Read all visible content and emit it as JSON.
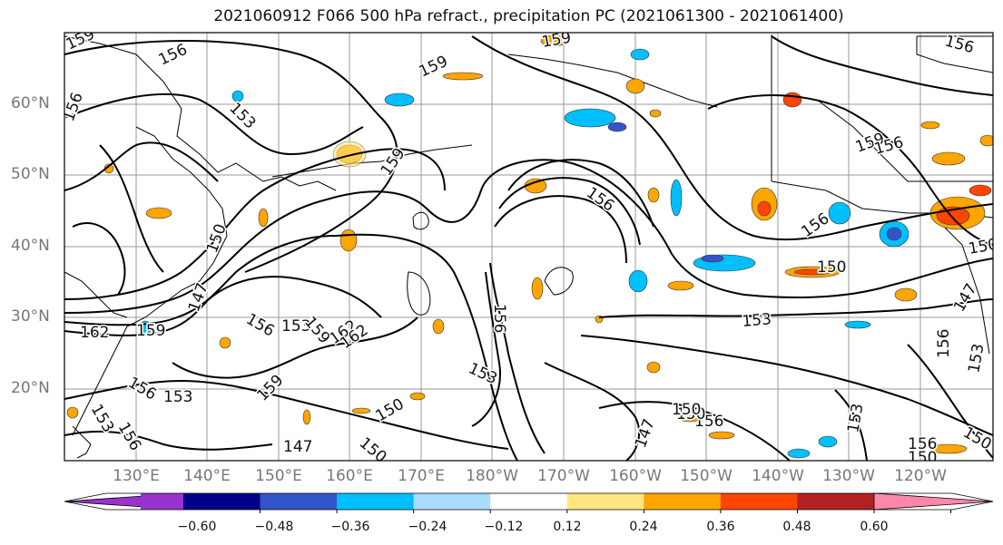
{
  "title": "2021060912 F066 500 hPa refract., precipitation PC (2021061300 - 2021061400)",
  "lat_labels": [
    "60°N",
    "50°N",
    "40°N",
    "30°N",
    "20°N"
  ],
  "lon_labels": [
    "130°E",
    "140°E",
    "150°E",
    "160°E",
    "170°E",
    "180°W",
    "170°W",
    "160°W",
    "150°W",
    "140°W",
    "130°W",
    "120°W"
  ],
  "colorbar": {
    "ticks": [
      "−0.60",
      "−0.48",
      "−0.36",
      "−0.24",
      "−0.12",
      "0.12",
      "0.24",
      "0.36",
      "0.48",
      "0.60"
    ],
    "colors": [
      "#9933cc",
      "#00008b",
      "#3355cc",
      "#00bfff",
      "#aadcff",
      "#ffffff",
      "#ffe680",
      "#ffa500",
      "#ff4500",
      "#b22222",
      "#ff88aa"
    ]
  },
  "contour_labels": [
    "159",
    "156",
    "156",
    "153",
    "159",
    "159",
    "156",
    "159",
    "147",
    "150",
    "156",
    "159",
    "162",
    "162",
    "159",
    "156",
    "153",
    "159",
    "156",
    "153",
    "150",
    "150",
    "147",
    "153",
    "153",
    "150",
    "156",
    "156",
    "156",
    "153",
    "150",
    "150",
    "147",
    "150",
    "153",
    "156",
    "147",
    "153",
    "150",
    "156",
    "159",
    "162",
    "156",
    "153",
    "150",
    "156"
  ]
}
